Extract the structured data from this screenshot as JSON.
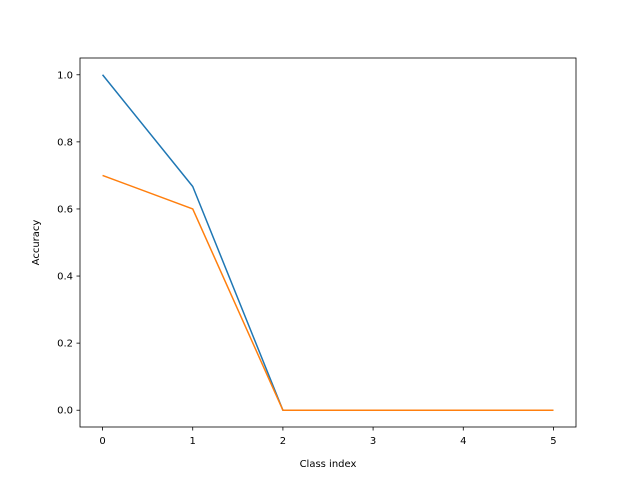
{
  "chart_data": {
    "type": "line",
    "title": "",
    "xlabel": "Class index",
    "ylabel": "Accuracy",
    "x": [
      0,
      1,
      2,
      3,
      4,
      5
    ],
    "xlim": [
      -0.25,
      5.25
    ],
    "ylim": [
      -0.05,
      1.05
    ],
    "xticks": [
      0,
      1,
      2,
      3,
      4,
      5
    ],
    "xtick_labels": [
      "0",
      "1",
      "2",
      "3",
      "4",
      "5"
    ],
    "yticks": [
      0,
      0.2,
      0.4,
      0.6,
      0.8,
      1.0
    ],
    "ytick_labels": [
      "0.0",
      "0.2",
      "0.4",
      "0.6",
      "0.8",
      "1.0"
    ],
    "grid": false,
    "legend": "none",
    "series": [
      {
        "values": [
          1.0,
          0.667,
          0.0,
          0.0,
          0.0,
          0.0
        ],
        "color": "#1f77b4"
      },
      {
        "values": [
          0.7,
          0.6,
          0.0,
          0.0,
          0.0,
          0.0
        ],
        "color": "#ff7f0e"
      }
    ]
  }
}
